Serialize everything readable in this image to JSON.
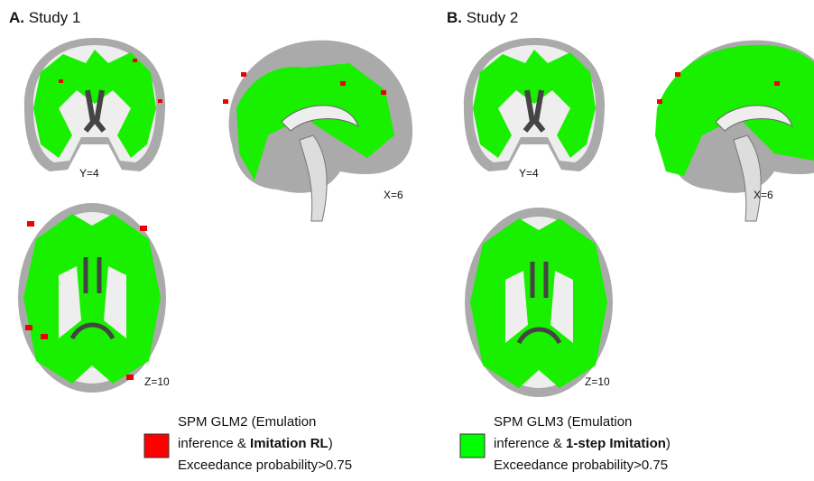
{
  "panels": [
    {
      "label": "A.",
      "title": "Study 1",
      "slices": [
        "Y=4",
        "X=6",
        "Z=10"
      ],
      "legend": {
        "line1": "SPM GLM2 (Emulation",
        "line2_prefix": "inference & ",
        "line2_bold": "Imitation RL",
        "line2_suffix": ")",
        "line3": "Exceedance probability>0.75"
      }
    },
    {
      "label": "B.",
      "title": "Study 2",
      "slices": [
        "Y=4",
        "X=6",
        "Z=10"
      ],
      "legend": {
        "line1": "SPM GLM3 (Emulation",
        "line2_prefix": "inference & ",
        "line2_bold": "1-step Imitation",
        "line2_suffix": ")",
        "line3": "Exceedance probability>0.75"
      }
    }
  ]
}
